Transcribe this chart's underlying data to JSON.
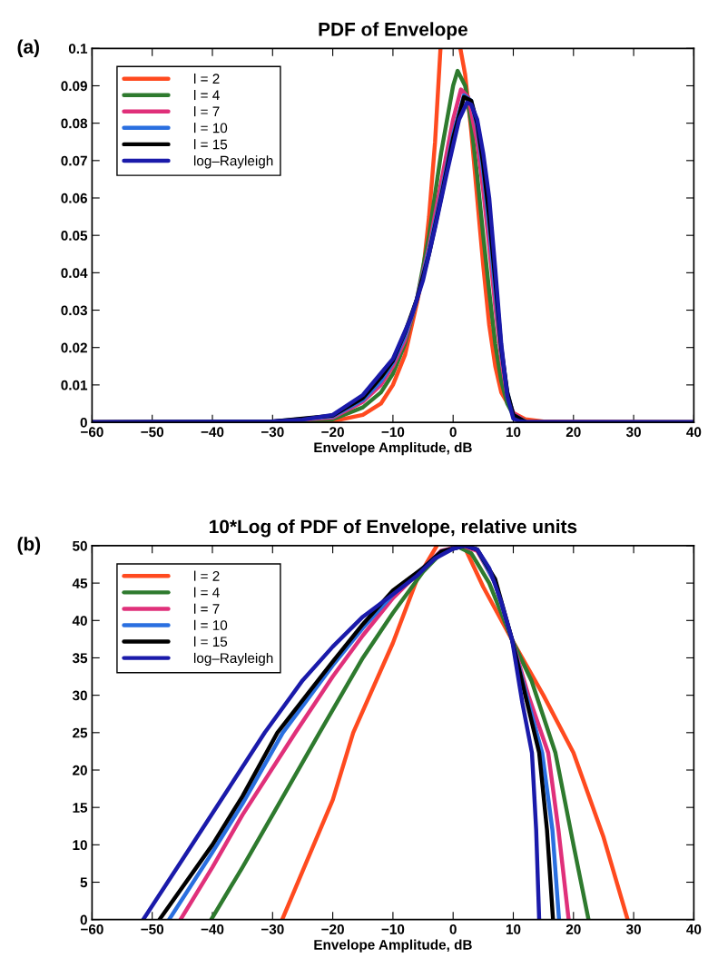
{
  "chart_data": [
    {
      "type": "line",
      "title": "PDF of Envelope",
      "xlabel": "Envelope Amplitude, dB",
      "annotations": [
        "(a)"
      ],
      "legend": "top left",
      "grid": false,
      "xlim": [
        -60,
        40
      ],
      "xticks": [
        -60,
        -50,
        -40,
        -30,
        -20,
        -10,
        0,
        10,
        20,
        30,
        40
      ],
      "ylim": [
        0,
        0.1
      ],
      "yticks": [
        0,
        0.01,
        0.02,
        0.03,
        0.04,
        0.05,
        0.06,
        0.07,
        0.08,
        0.09,
        0.1
      ],
      "series": [
        {
          "name": "l = 2",
          "color": "#ff4a1f",
          "x": [
            -60,
            -30,
            -20,
            -15,
            -12,
            -10,
            -8,
            -6,
            -5,
            -4,
            -3,
            -2.1,
            null,
            1.2,
            2,
            3,
            4,
            5,
            6,
            7,
            8,
            10,
            12,
            15,
            20,
            40
          ],
          "values": [
            0,
            0,
            0.0003,
            0.002,
            0.005,
            0.01,
            0.018,
            0.032,
            0.04,
            0.055,
            0.075,
            0.1,
            null,
            0.1,
            0.093,
            0.078,
            0.06,
            0.042,
            0.026,
            0.015,
            0.008,
            0.0025,
            0.0008,
            0.0002,
            0,
            0
          ]
        },
        {
          "name": "l = 4",
          "color": "#2e7a2e",
          "x": [
            -60,
            -30,
            -20,
            -15,
            -12,
            -10,
            -8,
            -6,
            -4,
            -2,
            0,
            0.75,
            2,
            3,
            4,
            5,
            6,
            7,
            8,
            9,
            10,
            12
          ],
          "values": [
            0,
            0.0001,
            0.0008,
            0.004,
            0.008,
            0.013,
            0.021,
            0.033,
            0.05,
            0.072,
            0.09,
            0.094,
            0.09,
            0.08,
            0.066,
            0.05,
            0.035,
            0.021,
            0.011,
            0.005,
            0.002,
            0.0003
          ]
        },
        {
          "name": "l = 7",
          "color": "#e0307a",
          "x": [
            -60,
            -30,
            -20,
            -15,
            -12,
            -10,
            -8,
            -6,
            -4,
            -2,
            0,
            1.3,
            2.5,
            4,
            5,
            6,
            7,
            8,
            9,
            10,
            12,
            40
          ],
          "values": [
            0,
            0.0002,
            0.0013,
            0.0055,
            0.01,
            0.015,
            0.022,
            0.033,
            0.047,
            0.064,
            0.081,
            0.089,
            0.087,
            0.075,
            0.062,
            0.047,
            0.031,
            0.017,
            0.007,
            0.0025,
            0.0002,
            0
          ]
        },
        {
          "name": "l = 10",
          "color": "#2a6fe0",
          "x": [
            -60,
            -30,
            -20,
            -15,
            -12,
            -10,
            -8,
            -6,
            -4,
            -2,
            0,
            1.8,
            3,
            4,
            5,
            6,
            7,
            8,
            9,
            10,
            12,
            40
          ],
          "values": [
            0,
            0.0002,
            0.0016,
            0.006,
            0.011,
            0.016,
            0.023,
            0.033,
            0.046,
            0.061,
            0.077,
            0.0875,
            0.086,
            0.079,
            0.067,
            0.052,
            0.035,
            0.019,
            0.008,
            0.002,
            0.0001,
            0
          ]
        },
        {
          "name": "l = 15",
          "color": "#000000",
          "x": [
            -60,
            -30,
            -20,
            -15,
            -12,
            -10,
            -8,
            -6,
            -4,
            -2,
            0,
            1.8,
            3,
            4,
            5,
            6,
            7,
            8,
            9,
            10,
            12,
            40
          ],
          "values": [
            0,
            0.0002,
            0.0018,
            0.0065,
            0.012,
            0.0165,
            0.024,
            0.033,
            0.045,
            0.06,
            0.076,
            0.087,
            0.086,
            0.08,
            0.069,
            0.055,
            0.038,
            0.02,
            0.008,
            0.002,
            0.0001,
            0
          ]
        },
        {
          "name": "log–Rayleigh",
          "color": "#1a1aaa",
          "x": [
            -60,
            -30,
            -25,
            -20,
            -15,
            -10,
            -7,
            -5,
            -3,
            -1,
            0,
            1,
            2.3,
            3,
            4,
            5,
            6,
            7,
            8,
            9,
            10,
            11,
            12,
            40
          ],
          "values": [
            0,
            0.0002,
            0.0007,
            0.002,
            0.0073,
            0.017,
            0.028,
            0.038,
            0.052,
            0.067,
            0.074,
            0.081,
            0.0855,
            0.085,
            0.081,
            0.072,
            0.06,
            0.041,
            0.021,
            0.007,
            0.001,
            0.0003,
            0.0001,
            0
          ]
        }
      ]
    },
    {
      "type": "line",
      "title": "10*Log of PDF of Envelope, relative units",
      "xlabel": "Envelope Amplitude, dB",
      "annotations": [
        "(b)"
      ],
      "legend": "top left",
      "grid": false,
      "xlim": [
        -60,
        40
      ],
      "xticks": [
        -60,
        -50,
        -40,
        -30,
        -20,
        -10,
        0,
        10,
        20,
        30,
        40
      ],
      "ylim": [
        0,
        50
      ],
      "yticks": [
        0,
        5,
        10,
        15,
        20,
        25,
        30,
        35,
        40,
        45,
        50
      ],
      "series": [
        {
          "name": "l = 2",
          "color": "#ff4a1f",
          "x": [
            -28.4,
            -25,
            -20,
            -16.6,
            -10,
            -6,
            -2.7,
            null,
            1.8,
            5,
            9.8,
            15,
            20,
            25,
            29
          ],
          "values": [
            0,
            6.5,
            16,
            25,
            37,
            45.5,
            50,
            null,
            50,
            44.5,
            37.4,
            30,
            22.3,
            11,
            0
          ]
        },
        {
          "name": "l = 4",
          "color": "#2e7a2e",
          "x": [
            -40.2,
            -35,
            -30,
            -22.2,
            -15,
            -10,
            -5,
            -2,
            0.5,
            3,
            6,
            9.8,
            13,
            17,
            20,
            22.5
          ],
          "values": [
            0,
            7,
            14,
            25,
            35,
            41,
            46.5,
            49,
            50,
            49,
            45,
            37.4,
            32,
            22.3,
            10,
            0
          ]
        },
        {
          "name": "l = 7",
          "color": "#e0307a",
          "x": [
            -45.3,
            -40,
            -35,
            -26.2,
            -20,
            -15,
            -10,
            -5,
            -2,
            1.5,
            4,
            7,
            9.8,
            12.5,
            15.8,
            17.5,
            19.2
          ],
          "values": [
            0,
            7,
            14,
            25,
            32.5,
            38,
            43,
            47,
            49.3,
            50,
            49.3,
            45,
            37.4,
            30,
            22.3,
            12,
            0
          ]
        },
        {
          "name": "l = 10",
          "color": "#2a6fe0",
          "x": [
            -47.2,
            -40,
            -35,
            -28.3,
            -20,
            -15,
            -10,
            -5,
            -2,
            2,
            4,
            7,
            9.8,
            12.5,
            14.8,
            16.5,
            17.6
          ],
          "values": [
            0,
            9,
            15.5,
            25,
            34,
            39,
            43.5,
            47,
            49.2,
            50,
            49.5,
            45,
            37.4,
            29,
            22.3,
            12,
            0
          ]
        },
        {
          "name": "l = 15",
          "color": "#000000",
          "x": [
            -48.8,
            -40,
            -35,
            -29.2,
            -20,
            -15,
            -10,
            -5,
            -2,
            2,
            4,
            7,
            9.8,
            12,
            14.3,
            15.6,
            16.6
          ],
          "values": [
            0,
            10,
            16.5,
            25,
            34.5,
            39.5,
            44,
            47,
            49.2,
            50,
            49.5,
            45.5,
            37.4,
            30,
            22.3,
            12,
            0
          ]
        },
        {
          "name": "log–Rayleigh",
          "color": "#1a1aaa",
          "x": [
            -51.5,
            -45,
            -40,
            -31.3,
            -25,
            -20,
            -15,
            -10,
            -6,
            -3,
            0,
            2,
            4,
            6,
            8,
            9.8,
            11.5,
            13.1,
            13.8,
            14.3
          ],
          "values": [
            0,
            8,
            14.2,
            25,
            32,
            36.5,
            40.5,
            43.5,
            46,
            48.3,
            49.6,
            50,
            49.5,
            47,
            42.5,
            37.4,
            29,
            22.3,
            12,
            0
          ]
        }
      ]
    }
  ]
}
